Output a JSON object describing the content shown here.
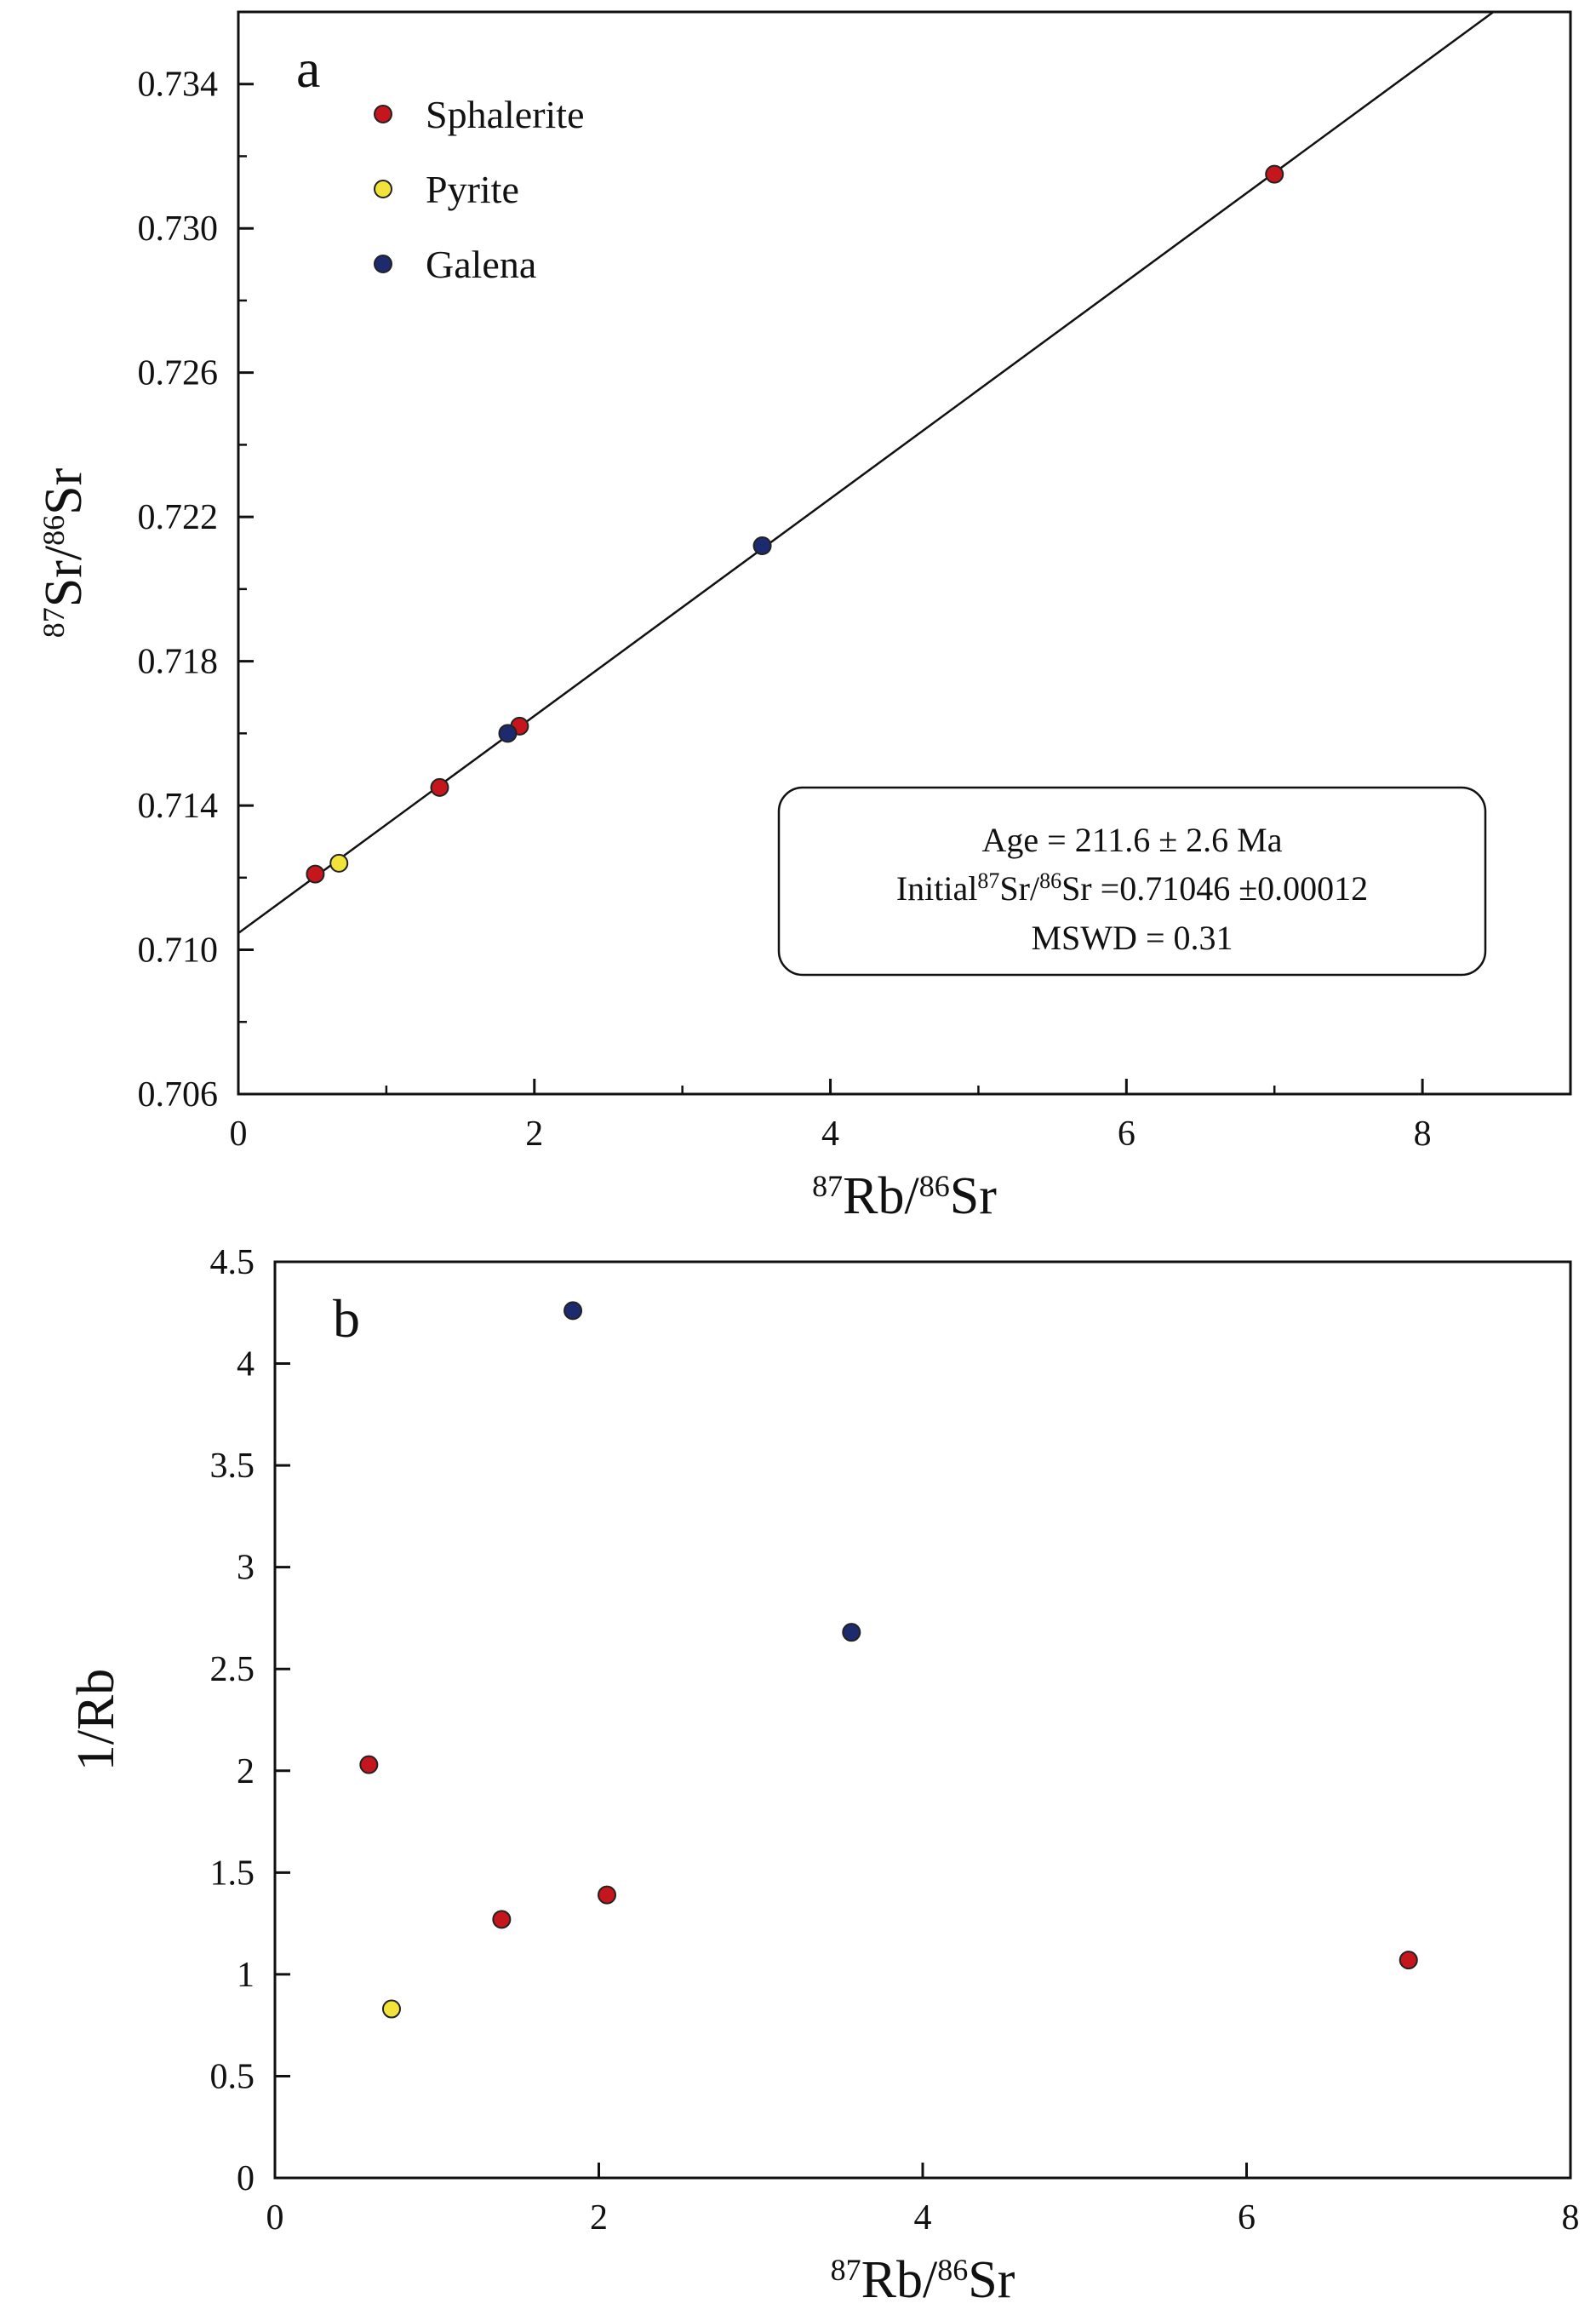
{
  "chart_data": [
    {
      "type": "scatter",
      "panel_label": "a",
      "xlabel": {
        "sup1": "87",
        "base1": "Rb/",
        "sup2": "86",
        "base2": "Sr"
      },
      "ylabel": {
        "sup1": "87",
        "base1": "Sr/",
        "sup2": "86",
        "base2": "Sr"
      },
      "xlim": [
        0,
        9
      ],
      "ylim": [
        0.706,
        0.736
      ],
      "x_ticks": [
        0,
        2,
        4,
        6,
        8
      ],
      "x_tick_labels": [
        "0",
        "2",
        "4",
        "6",
        "8"
      ],
      "x_minor_ticks": [
        1,
        3,
        5,
        7
      ],
      "y_ticks": [
        0.706,
        0.71,
        0.714,
        0.718,
        0.722,
        0.726,
        0.73,
        0.734
      ],
      "y_tick_labels": [
        "0.706",
        "0.710",
        "0.714",
        "0.718",
        "0.722",
        "0.726",
        "0.730",
        "0.734"
      ],
      "y_minor_ticks": [
        0.708,
        0.712,
        0.716,
        0.72,
        0.724,
        0.728,
        0.732
      ],
      "grid": false,
      "legend_position": "top-left",
      "series": [
        {
          "name": "Sphalerite",
          "color": "#c4161c",
          "points": [
            [
              0.52,
              0.7121
            ],
            [
              1.36,
              0.7145
            ],
            [
              1.9,
              0.7162
            ],
            [
              7.0,
              0.7315
            ]
          ]
        },
        {
          "name": "Pyrite",
          "color": "#f2e33a",
          "points": [
            [
              0.68,
              0.7124
            ]
          ]
        },
        {
          "name": "Galena",
          "color": "#1e2a6e",
          "points": [
            [
              1.82,
              0.716
            ],
            [
              3.54,
              0.7212
            ]
          ]
        }
      ],
      "isochron": {
        "intercept": 0.71046,
        "slope": 0.003012
      },
      "annotation_box": {
        "line1": "Age = 211.6 ± 2.6 Ma",
        "line2_prefix": "Initial",
        "line2_sup1": "87",
        "line2_mid": "Sr/",
        "line2_sup2": "86",
        "line2_suffix": "Sr =0.71046 ±0.00012",
        "line3": "MSWD = 0.31"
      }
    },
    {
      "type": "scatter",
      "panel_label": "b",
      "xlabel": {
        "sup1": "87",
        "base1": "Rb/",
        "sup2": "86",
        "base2": "Sr"
      },
      "ylabel": "1/Rb",
      "xlim": [
        0,
        8
      ],
      "ylim": [
        0,
        4.5
      ],
      "x_ticks": [
        0,
        2,
        4,
        6,
        8
      ],
      "x_tick_labels": [
        "0",
        "2",
        "4",
        "6",
        "8"
      ],
      "y_ticks": [
        0,
        0.5,
        1,
        1.5,
        2,
        2.5,
        3,
        3.5,
        4,
        4.5
      ],
      "y_tick_labels": [
        "0",
        "0.5",
        "1",
        "1.5",
        "2",
        "2.5",
        "3",
        "3.5",
        "4",
        "4.5"
      ],
      "grid": false,
      "series": [
        {
          "name": "Sphalerite",
          "color": "#c4161c",
          "points": [
            [
              0.58,
              2.03
            ],
            [
              1.4,
              1.27
            ],
            [
              2.05,
              1.39
            ],
            [
              7.0,
              1.07
            ]
          ]
        },
        {
          "name": "Pyrite",
          "color": "#f2e33a",
          "points": [
            [
              0.72,
              0.83
            ]
          ]
        },
        {
          "name": "Galena",
          "color": "#1e2a6e",
          "points": [
            [
              1.84,
              4.26
            ],
            [
              3.56,
              2.68
            ]
          ]
        }
      ]
    }
  ]
}
